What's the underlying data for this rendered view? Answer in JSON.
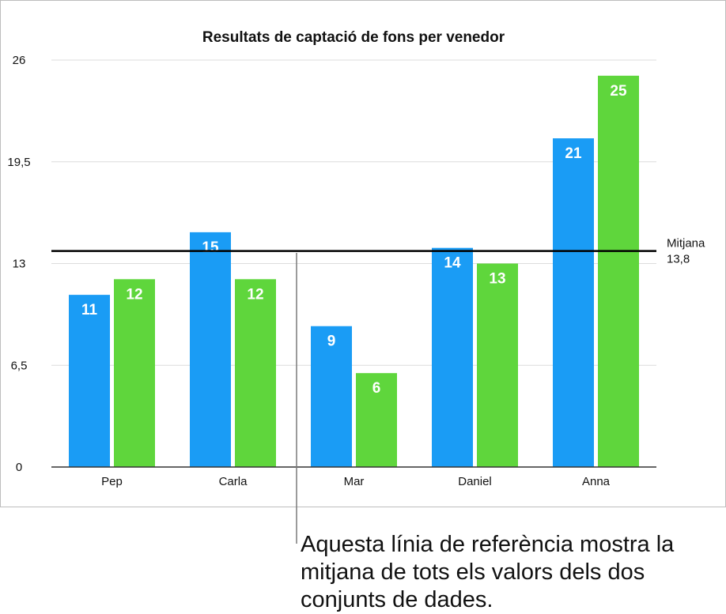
{
  "chart_data": {
    "type": "bar",
    "title": "Resultats de captació de fons per venedor",
    "xlabel": "",
    "ylabel": "",
    "categories": [
      "Pep",
      "Carla",
      "Mar",
      "Daniel",
      "Anna"
    ],
    "series": [
      {
        "color": "#1a9cf5",
        "values": [
          11,
          15,
          9,
          14,
          21
        ]
      },
      {
        "color": "#5fd63c",
        "values": [
          12,
          12,
          6,
          13,
          25
        ]
      }
    ],
    "ylim": [
      0,
      26
    ],
    "yticks": [
      0,
      6.5,
      13,
      19.5,
      26
    ],
    "ytick_labels": [
      "0",
      "6,5",
      "13",
      "19,5",
      "26"
    ],
    "grid": true,
    "data_labels": true,
    "reference_line": {
      "value": 13.8,
      "label": "Mitjana",
      "value_label": "13,8"
    }
  },
  "callout": {
    "text": "Aquesta línia de referència mostra la mitjana de tots els valors dels dos conjunts de dades."
  }
}
